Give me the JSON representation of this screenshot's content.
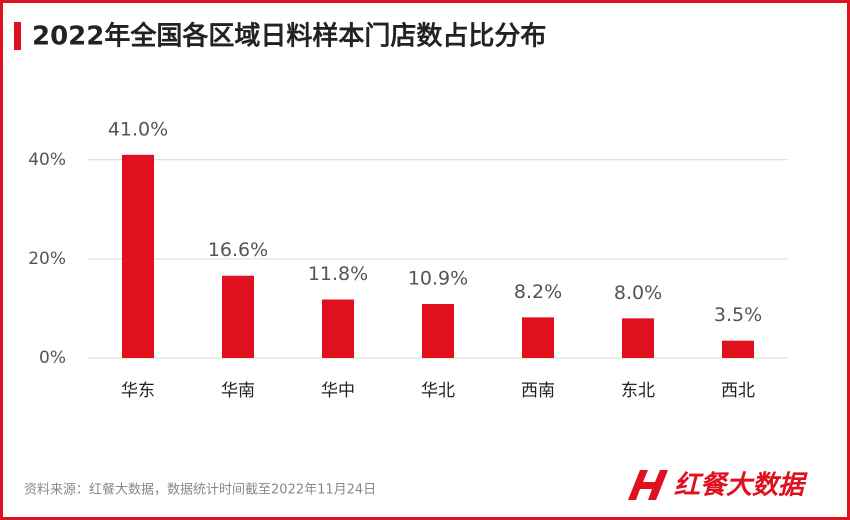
{
  "chart_data": {
    "type": "bar",
    "title": "2022年全国各区域日料样本门店数占比分布",
    "categories": [
      "华东",
      "华南",
      "华中",
      "华北",
      "西南",
      "东北",
      "西北"
    ],
    "values": [
      41.0,
      16.6,
      11.8,
      10.9,
      8.2,
      8.0,
      3.5
    ],
    "value_labels": [
      "41.0%",
      "16.6%",
      "11.8%",
      "10.9%",
      "8.2%",
      "8.0%",
      "3.5%"
    ],
    "color": "#e0101f",
    "ylim": [
      0,
      45
    ],
    "yticks": [
      {
        "value": 0,
        "label": "0%"
      },
      {
        "value": 20,
        "label": "20%"
      },
      {
        "value": 40,
        "label": "40%"
      }
    ],
    "grid": true,
    "source": "资料来源：红餐大数据，数据统计时间截至2022年11月24日",
    "brand": "红餐大数据"
  }
}
